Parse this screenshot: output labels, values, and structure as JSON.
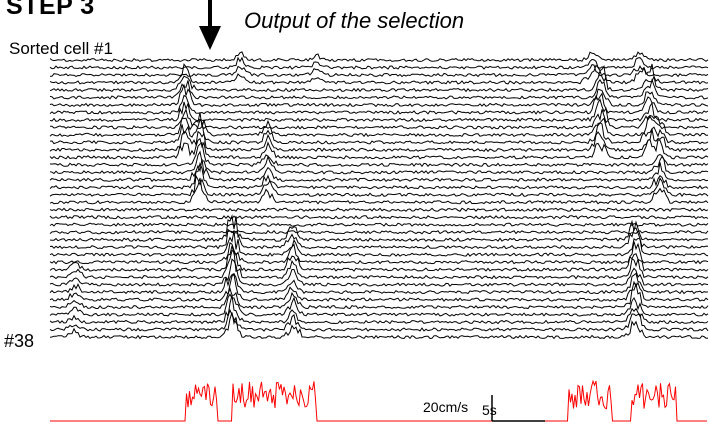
{
  "figure": {
    "step_label": "STEP 3",
    "arrow_annotation": "Output of the selection",
    "first_cell_label": "Sorted cell #1",
    "last_cell_label": "#38",
    "trace_count": 38,
    "trace_color": "#000000",
    "speed_trace_color": "#ff0000"
  },
  "scale_bar": {
    "vertical_label": "20cm/s",
    "horizontal_label": "5s"
  }
}
